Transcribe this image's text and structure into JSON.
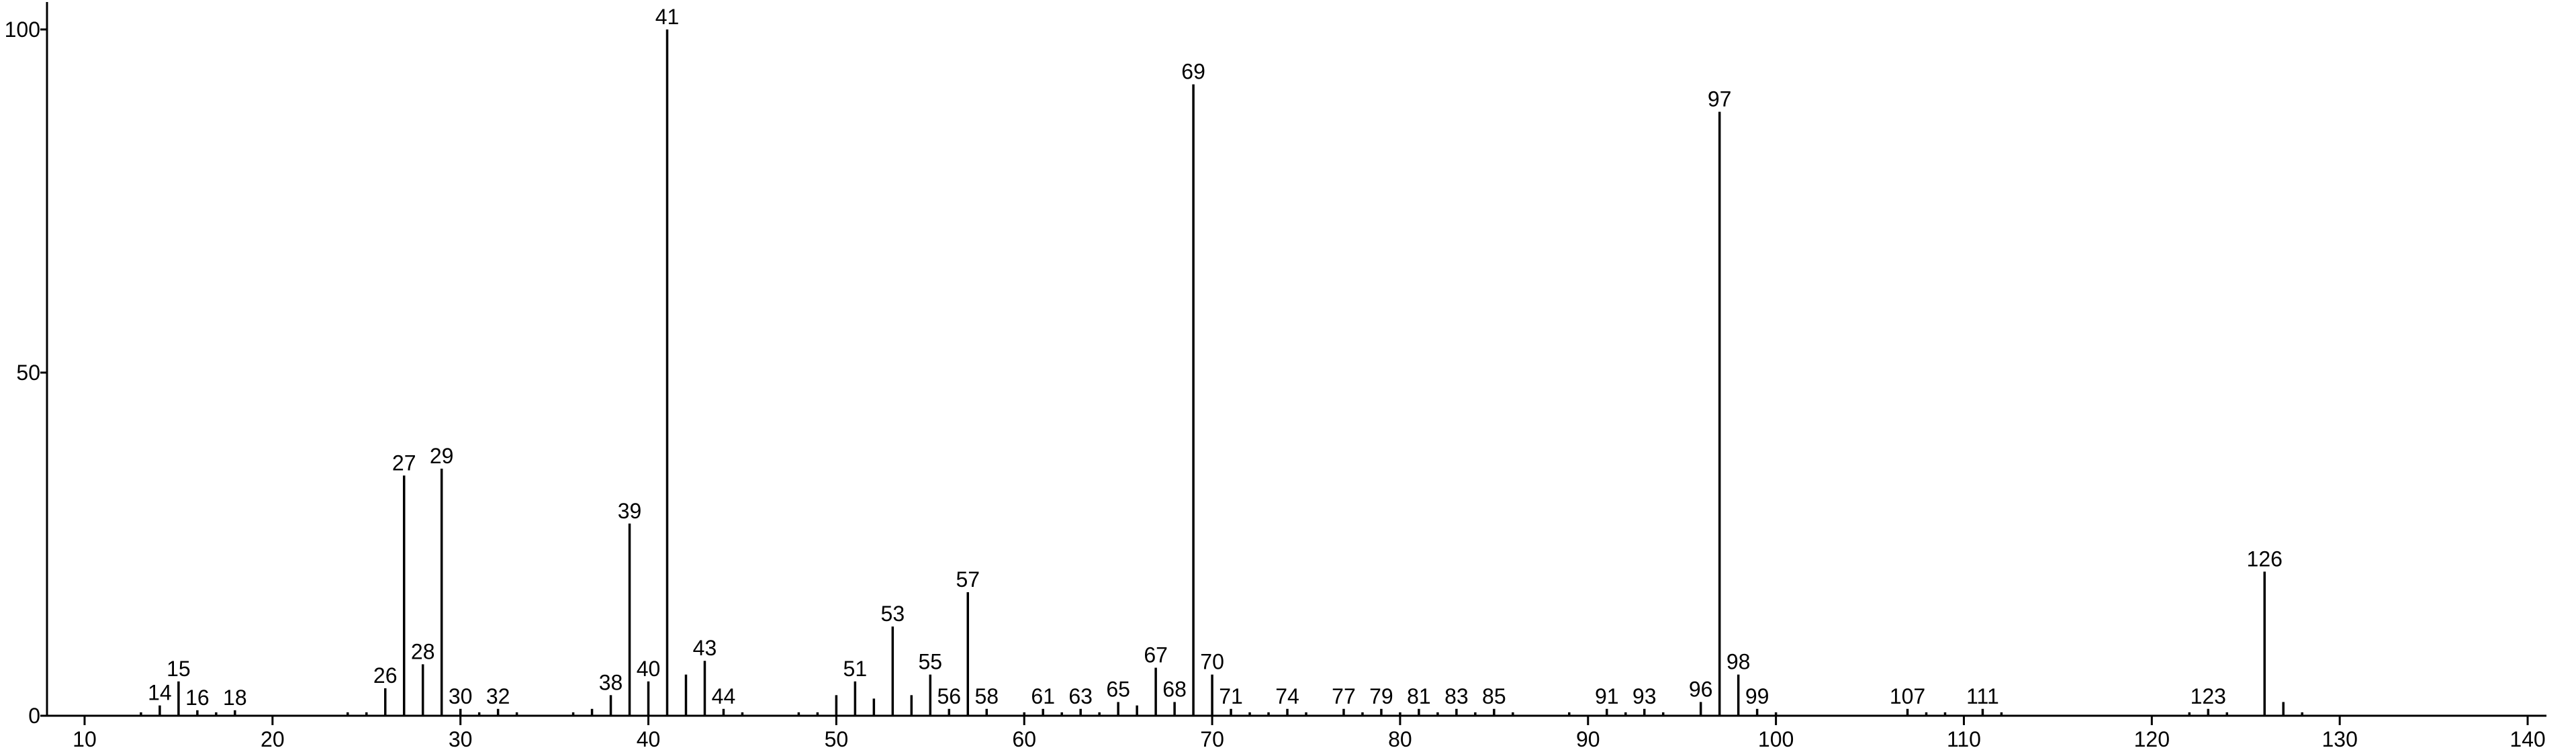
{
  "chart_data": {
    "type": "stem",
    "x": [
      13,
      14,
      15,
      16,
      17,
      18,
      24,
      25,
      26,
      27,
      28,
      29,
      30,
      31,
      32,
      33,
      36,
      37,
      38,
      39,
      40,
      41,
      42,
      43,
      44,
      45,
      48,
      49,
      50,
      51,
      52,
      53,
      54,
      55,
      56,
      57,
      58,
      60,
      61,
      62,
      63,
      64,
      65,
      66,
      67,
      68,
      69,
      70,
      71,
      72,
      73,
      74,
      75,
      77,
      78,
      79,
      80,
      81,
      82,
      83,
      84,
      85,
      86,
      89,
      91,
      92,
      93,
      94,
      96,
      97,
      98,
      99,
      100,
      107,
      108,
      109,
      111,
      112,
      122,
      123,
      124,
      126,
      127,
      128
    ],
    "values": [
      0.5,
      1.5,
      5,
      0.8,
      0.5,
      0.8,
      0.5,
      0.5,
      4,
      35,
      7.5,
      36,
      1,
      0.5,
      1,
      0.5,
      0.5,
      1,
      3,
      28,
      5,
      100,
      6,
      8,
      1,
      0.5,
      0.5,
      0.5,
      3,
      5,
      2.5,
      13,
      3,
      6,
      1,
      18,
      1,
      0.5,
      1,
      0.5,
      1,
      0.5,
      2,
      1.5,
      7,
      2,
      92,
      6,
      1,
      0.5,
      0.5,
      1,
      0.5,
      1,
      0.5,
      1,
      0.5,
      1,
      0.5,
      1,
      0.5,
      1,
      0.5,
      0.5,
      1,
      0.5,
      1,
      0.5,
      2,
      88,
      6,
      1,
      0.5,
      1,
      0.5,
      0.5,
      1,
      0.5,
      0.5,
      1,
      0.5,
      21,
      2,
      0.5
    ],
    "labels": [
      null,
      14,
      15,
      16,
      null,
      18,
      null,
      null,
      26,
      27,
      28,
      29,
      30,
      null,
      32,
      null,
      null,
      null,
      38,
      39,
      40,
      41,
      null,
      43,
      44,
      null,
      null,
      null,
      null,
      51,
      null,
      53,
      null,
      55,
      56,
      57,
      58,
      null,
      61,
      null,
      63,
      null,
      65,
      null,
      67,
      68,
      69,
      70,
      71,
      null,
      null,
      74,
      null,
      77,
      null,
      79,
      null,
      81,
      null,
      83,
      null,
      85,
      null,
      null,
      91,
      null,
      93,
      null,
      96,
      97,
      98,
      99,
      null,
      107,
      null,
      null,
      111,
      null,
      null,
      123,
      null,
      126,
      null,
      null
    ],
    "color": "#000000",
    "xlim": [
      8,
      141
    ],
    "xticks": [
      10,
      20,
      30,
      40,
      50,
      60,
      70,
      80,
      90,
      100,
      110,
      120,
      130,
      140
    ],
    "ylim": [
      0,
      104
    ],
    "yticks": [
      0,
      50,
      100
    ]
  }
}
